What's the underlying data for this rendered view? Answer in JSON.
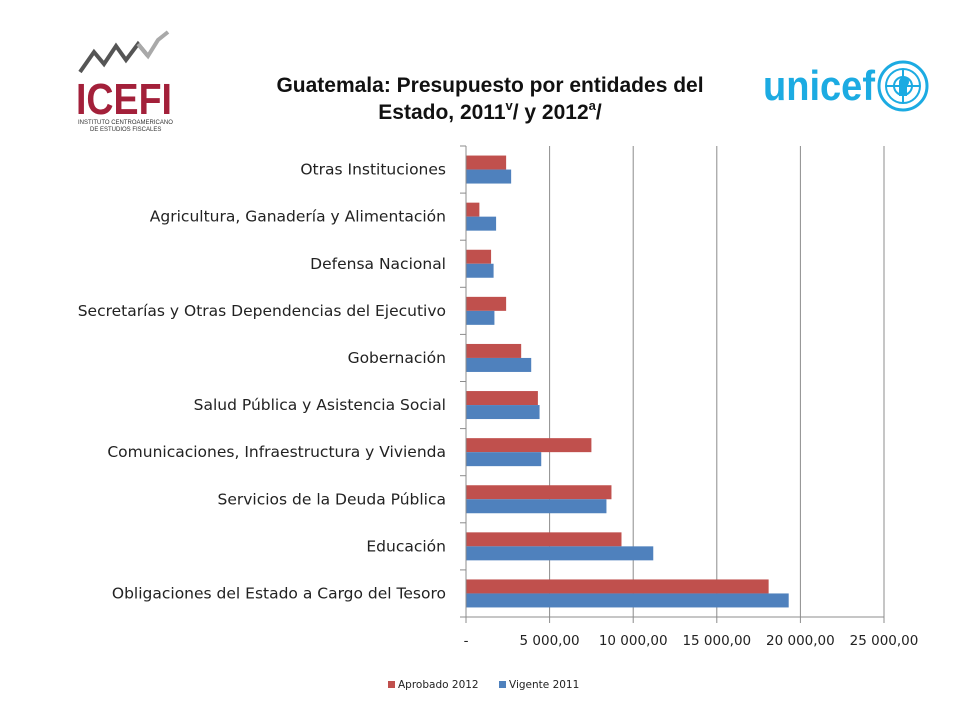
{
  "title": {
    "line1": "Guatemala: Presupuesto por entidades del",
    "line2_main": "Estado, 2011",
    "line2_sup1": "v",
    "line2_mid": "/ y 2012",
    "line2_sup2": "a",
    "line2_end": "/"
  },
  "logos": {
    "icefi": {
      "name": "ICEFI",
      "subtitle_line1": "INSTITUTO CENTROAMERICANO",
      "subtitle_line2": "DE ESTUDIOS FISCALES"
    },
    "unicef": {
      "name": "unicef"
    }
  },
  "colors": {
    "aprobado": "#C0504D",
    "vigente": "#4F81BD",
    "grid": "#8C8C8C",
    "icefi_red": "#A3203A",
    "unicef_blue": "#1CABE2"
  },
  "chart_data": {
    "type": "bar",
    "orientation": "horizontal",
    "categories": [
      "Obligaciones del Estado a Cargo del Tesoro",
      "Educación",
      "Servicios de la Deuda Pública",
      "Comunicaciones, Infraestructura y Vivienda",
      "Salud Pública y Asistencia Social",
      "Gobernación",
      "Secretarías y Otras Dependencias del Ejecutivo",
      "Defensa Nacional",
      "Agricultura, Ganadería y Alimentación",
      "Otras Instituciones"
    ],
    "series": [
      {
        "name": "Aprobado 2012",
        "values": [
          18100,
          9300,
          8700,
          7500,
          4300,
          3300,
          2400,
          1500,
          800,
          2400
        ]
      },
      {
        "name": "Vigente 2011",
        "values": [
          19300,
          11200,
          8400,
          4500,
          4400,
          3900,
          1700,
          1650,
          1800,
          2700
        ]
      }
    ],
    "xlim": [
      0,
      25000
    ],
    "xticks": [
      "-",
      "5 000,00",
      "10 000,00",
      "15 000,00",
      "20 000,00",
      "25 000,00"
    ],
    "legend_position": "bottom",
    "grid": true
  }
}
